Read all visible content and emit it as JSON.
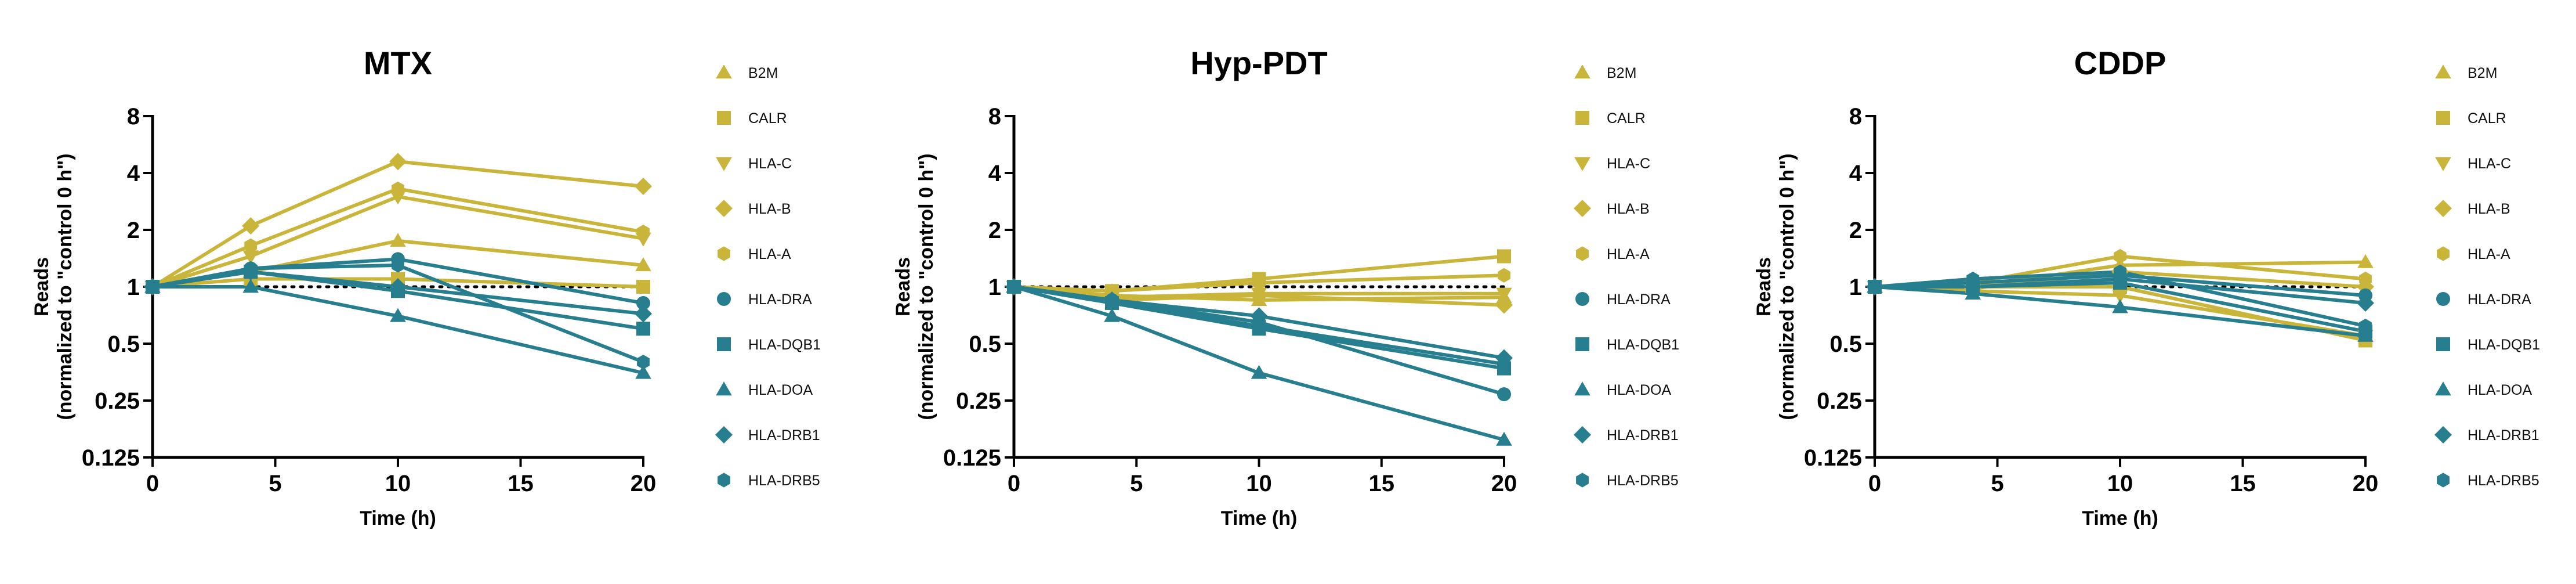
{
  "colors": {
    "gold": "#C9B53A",
    "teal": "#267E8E",
    "axis": "#000000"
  },
  "legend_markers": {
    "B2M": "triangle-up",
    "CALR": "square",
    "HLA-C": "triangle-down",
    "HLA-B": "diamond",
    "HLA-A": "hexagon",
    "HLA-DRA": "circle",
    "HLA-DQB1": "square",
    "HLA-DOA": "triangle-up",
    "HLA-DRB1": "diamond",
    "HLA-DRB5": "hexagon"
  },
  "chart_data": [
    {
      "type": "line",
      "title": "MTX",
      "xlabel": "Time (h)",
      "ylabel": [
        "Reads",
        "(normalized to \"control 0 h\")"
      ],
      "yscale": "log2",
      "ylim": [
        0.125,
        8
      ],
      "yticks": [
        0.125,
        0.25,
        0.5,
        1,
        2,
        4,
        8
      ],
      "ytick_labels": [
        "0.125",
        "0.25",
        "0.5",
        "1",
        "2",
        "4",
        "8"
      ],
      "xlim": [
        0,
        20
      ],
      "xticks": [
        0,
        5,
        10,
        15,
        20
      ],
      "reference_line": 1,
      "x": [
        0,
        4,
        10,
        20
      ],
      "series": [
        {
          "name": "B2M",
          "group": "gold",
          "values": [
            1.0,
            1.2,
            1.75,
            1.3
          ]
        },
        {
          "name": "CALR",
          "group": "gold",
          "values": [
            1.0,
            1.1,
            1.1,
            1.0
          ]
        },
        {
          "name": "HLA-C",
          "group": "gold",
          "values": [
            1.0,
            1.45,
            3.0,
            1.8
          ]
        },
        {
          "name": "HLA-B",
          "group": "gold",
          "values": [
            1.0,
            2.1,
            4.6,
            3.4
          ]
        },
        {
          "name": "HLA-A",
          "group": "gold",
          "values": [
            1.0,
            1.65,
            3.3,
            1.95
          ]
        },
        {
          "name": "HLA-DRA",
          "group": "teal",
          "values": [
            1.0,
            1.25,
            1.4,
            0.82
          ]
        },
        {
          "name": "HLA-DQB1",
          "group": "teal",
          "values": [
            1.0,
            1.2,
            0.95,
            0.6
          ]
        },
        {
          "name": "HLA-DOA",
          "group": "teal",
          "values": [
            1.0,
            1.0,
            0.7,
            0.35
          ]
        },
        {
          "name": "HLA-DRB1",
          "group": "teal",
          "values": [
            1.0,
            1.2,
            1.0,
            0.72
          ]
        },
        {
          "name": "HLA-DRB5",
          "group": "teal",
          "values": [
            1.0,
            1.25,
            1.3,
            0.4
          ]
        }
      ]
    },
    {
      "type": "line",
      "title": "Hyp-PDT",
      "xlabel": "Time (h)",
      "ylabel": [
        "Reads",
        "(normalized to \"control 0 h\")"
      ],
      "yscale": "log2",
      "ylim": [
        0.125,
        8
      ],
      "yticks": [
        0.125,
        0.25,
        0.5,
        1,
        2,
        4,
        8
      ],
      "ytick_labels": [
        "0.125",
        "0.25",
        "0.5",
        "1",
        "2",
        "4",
        "8"
      ],
      "xlim": [
        0,
        20
      ],
      "xticks": [
        0,
        5,
        10,
        15,
        20
      ],
      "reference_line": 1,
      "x": [
        0,
        4,
        10,
        20
      ],
      "series": [
        {
          "name": "B2M",
          "group": "gold",
          "values": [
            1.0,
            0.9,
            0.85,
            0.88
          ]
        },
        {
          "name": "CALR",
          "group": "gold",
          "values": [
            1.0,
            0.95,
            1.1,
            1.45
          ]
        },
        {
          "name": "HLA-C",
          "group": "gold",
          "values": [
            1.0,
            0.88,
            0.92,
            0.92
          ]
        },
        {
          "name": "HLA-B",
          "group": "gold",
          "values": [
            1.0,
            0.85,
            0.9,
            0.8
          ]
        },
        {
          "name": "HLA-A",
          "group": "gold",
          "values": [
            1.0,
            0.95,
            1.05,
            1.15
          ]
        },
        {
          "name": "HLA-DRA",
          "group": "teal",
          "values": [
            1.0,
            0.85,
            0.65,
            0.27
          ]
        },
        {
          "name": "HLA-DQB1",
          "group": "teal",
          "values": [
            1.0,
            0.82,
            0.6,
            0.37
          ]
        },
        {
          "name": "HLA-DOA",
          "group": "teal",
          "values": [
            1.0,
            0.7,
            0.35,
            0.155
          ]
        },
        {
          "name": "HLA-DRB1",
          "group": "teal",
          "values": [
            1.0,
            0.85,
            0.7,
            0.42
          ]
        },
        {
          "name": "HLA-DRB5",
          "group": "teal",
          "values": [
            1.0,
            0.83,
            0.62,
            0.39
          ]
        }
      ]
    },
    {
      "type": "line",
      "title": "CDDP",
      "xlabel": "Time (h)",
      "ylabel": [
        "Reads",
        "(normalized to \"control 0 h\")"
      ],
      "yscale": "log2",
      "ylim": [
        0.125,
        8
      ],
      "yticks": [
        0.125,
        0.25,
        0.5,
        1,
        2,
        4,
        8
      ],
      "ytick_labels": [
        "0.125",
        "0.25",
        "0.5",
        "1",
        "2",
        "4",
        "8"
      ],
      "xlim": [
        0,
        20
      ],
      "xticks": [
        0,
        5,
        10,
        15,
        20
      ],
      "reference_line": 1,
      "x": [
        0,
        4,
        10,
        20
      ],
      "series": [
        {
          "name": "B2M",
          "group": "gold",
          "values": [
            1.0,
            1.0,
            1.3,
            1.35
          ]
        },
        {
          "name": "CALR",
          "group": "gold",
          "values": [
            1.0,
            1.0,
            1.0,
            0.52
          ]
        },
        {
          "name": "HLA-C",
          "group": "gold",
          "values": [
            1.0,
            0.95,
            0.9,
            0.55
          ]
        },
        {
          "name": "HLA-B",
          "group": "gold",
          "values": [
            1.0,
            0.98,
            1.2,
            1.0
          ]
        },
        {
          "name": "HLA-A",
          "group": "gold",
          "values": [
            1.0,
            1.05,
            1.45,
            1.1
          ]
        },
        {
          "name": "HLA-DRA",
          "group": "teal",
          "values": [
            1.0,
            1.05,
            1.15,
            0.9
          ]
        },
        {
          "name": "HLA-DQB1",
          "group": "teal",
          "values": [
            1.0,
            1.0,
            1.05,
            0.58
          ]
        },
        {
          "name": "HLA-DOA",
          "group": "teal",
          "values": [
            1.0,
            0.92,
            0.78,
            0.55
          ]
        },
        {
          "name": "HLA-DRB1",
          "group": "teal",
          "values": [
            1.0,
            1.0,
            1.1,
            0.82
          ]
        },
        {
          "name": "HLA-DRB5",
          "group": "teal",
          "values": [
            1.0,
            1.1,
            1.2,
            0.62
          ]
        }
      ]
    }
  ]
}
